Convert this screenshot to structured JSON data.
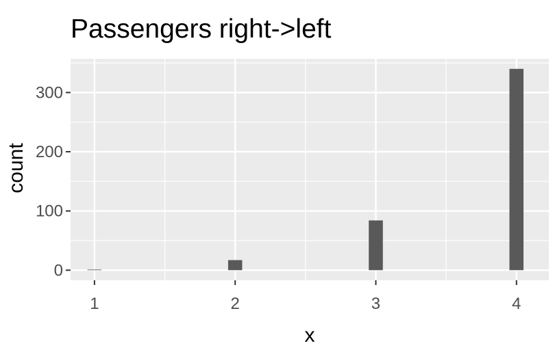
{
  "chart_data": {
    "type": "bar",
    "title": "Passengers right->left",
    "xlabel": "x",
    "ylabel": "count",
    "x": [
      1,
      2,
      3,
      4
    ],
    "values": [
      1,
      17,
      84,
      340
    ],
    "xlim": [
      0.83,
      4.23
    ],
    "ylim": [
      -17,
      357
    ],
    "x_ticks": [
      1,
      2,
      3,
      4
    ],
    "x_tick_labels": [
      "1",
      "2",
      "3",
      "4"
    ],
    "y_ticks": [
      0,
      100,
      200,
      300
    ],
    "y_tick_labels": [
      "0",
      "100",
      "200",
      "300"
    ],
    "grid": true,
    "legend": "none",
    "colors": {
      "bar": "#595959",
      "panel": "#ebebeb",
      "grid": "#ffffff",
      "tick": "#333333"
    }
  }
}
